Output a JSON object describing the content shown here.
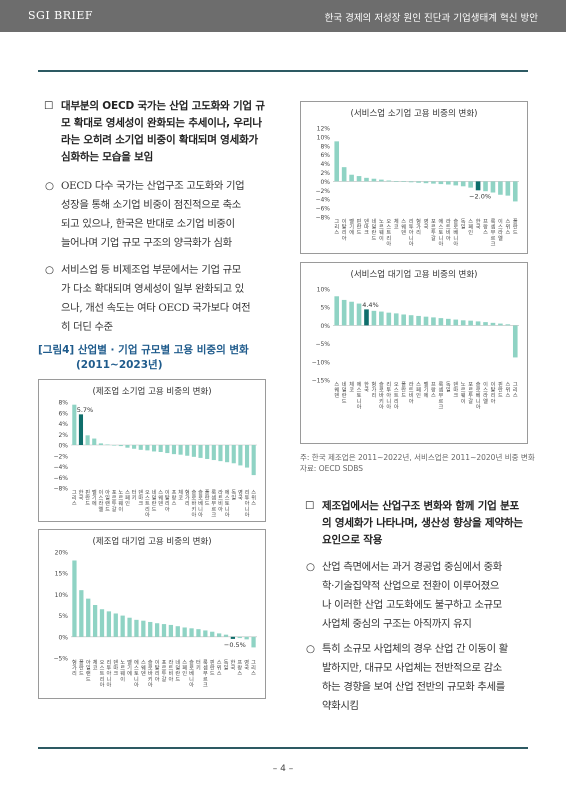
{
  "header": {
    "left": "SGI BRIEF",
    "right": "한국 경제의 저성장 원인 진단과 기업생태계 혁신 방안"
  },
  "page_number": "– 4 –",
  "left_text": {
    "head1": {
      "mark": "☐",
      "lines": [
        "대부분의 OECD 국가는 산업 고도화와 기업 규",
        "모 확대로 영세성이 완화되는 추세이나, 우리나",
        "라는 오히려 소기업 비중이 확대되며 영세화가",
        "심화하는 모습을 보임"
      ]
    },
    "bullets": [
      {
        "mark": "○",
        "lines": [
          "OECD 다수 국가는 산업구조 고도화와 기업",
          "성장을 통해 소기업 비중이 점진적으로 축소",
          "되고 있으나, 한국은 반대로 소기업 비중이",
          "늘어나며 기업 규모 구조의 양극화가 심화"
        ]
      },
      {
        "mark": "○",
        "lines": [
          "서비스업 등 비제조업 부문에서는 기업 규모",
          "가 다소 확대되며 영세성이 일부 완화되고 있",
          "으나, 개선 속도는 여타 OECD 국가보다 여전",
          "히 더딘 수준"
        ]
      }
    ]
  },
  "figure_title": {
    "line1": "[그림4] 산업별 · 기업 규모별 고용 비중의 변화",
    "line2": "(2011~2023년)"
  },
  "right_text": {
    "head": {
      "mark": "☐",
      "lines": [
        "제조업에서는 산업구조 변화와 함께 기업 분포",
        "의 영세화가 나타나며, 생산성 향상을 제약하는",
        "요인으로 작용"
      ]
    },
    "bullets": [
      {
        "mark": "○",
        "lines": [
          "산업 측면에서는 과거 경공업 중심에서 중화",
          "학·기술집약적 산업으로 전환이 이루어졌으",
          "나 이러한 산업 고도화에도 불구하고 소규모",
          "사업체 중심의 구조는 아직까지 유지"
        ]
      },
      {
        "mark": "○",
        "lines": [
          "특히 소규모 사업체의 경우 산업 간 이동이 활",
          "발하지만, 대규모 사업체는 전반적으로 감소",
          "하는 경향을 보여 산업 전반의 규모화 추세를",
          "약화시킴"
        ]
      }
    ]
  },
  "note": {
    "line1": "주: 한국 제조업은 2011~2022년, 서비스업은 2011~2020년 비중 변화",
    "line2": "자료: OECD SDBS"
  },
  "colors": {
    "bar": "#8fd3c4",
    "highlight": "#0f6e6b",
    "title_blue": "#1f5b8c"
  },
  "chart_data": [
    {
      "type": "bar",
      "title": "(제조업 소기업 고용 비중의 변화)",
      "categories": [
        "그리스",
        "한국",
        "핀란드",
        "벨기에",
        "이스라엘",
        "아일랜드",
        "포르투갈",
        "노르웨이",
        "스페인",
        "터키",
        "덴마크",
        "오스트리아",
        "네덜란드",
        "스웨덴",
        "이탈리아",
        "프랑스",
        "체코",
        "헝가리",
        "슬로바키아",
        "슬로베니아",
        "폴란드",
        "룩셈부르크",
        "라트비아",
        "에스토니아",
        "독일",
        "영국",
        "리투아니아",
        "스위스"
      ],
      "values": [
        7.5,
        5.7,
        1.8,
        1.2,
        0.3,
        0.1,
        0.0,
        -0.2,
        -0.5,
        -0.7,
        -0.9,
        -1.0,
        -1.2,
        -1.3,
        -1.5,
        -1.7,
        -1.8,
        -2.0,
        -2.2,
        -2.4,
        -2.6,
        -2.8,
        -3.0,
        -3.2,
        -3.4,
        -3.8,
        -4.2,
        -5.6
      ],
      "highlight_index": 1,
      "data_labels": [
        {
          "index": 1,
          "text": "5.7%"
        }
      ],
      "ylim": [
        -8,
        8
      ],
      "yticks": [
        "8%",
        "6%",
        "4%",
        "2%",
        "0%",
        "−2%",
        "−4%",
        "−6%",
        "−8%"
      ]
    },
    {
      "type": "bar",
      "title": "(제조업 대기업 고용 비중의 변화)",
      "categories": [
        "헝가리",
        "폴란드",
        "아일랜드",
        "체코",
        "오스트리아",
        "리투아니아",
        "덴마크",
        "노르웨이",
        "벨기에",
        "에스토니아",
        "스웨덴",
        "슬로바키아",
        "이탈리아",
        "포르투갈",
        "라트비아",
        "네덜란드",
        "스페인",
        "슬로베니아",
        "터키",
        "룩셈부르크",
        "핀란드",
        "스위스",
        "독일",
        "한국",
        "프랑스",
        "영국",
        "그리스"
      ],
      "values": [
        18.0,
        11.0,
        9.0,
        7.5,
        6.5,
        6.0,
        5.5,
        5.0,
        4.5,
        4.0,
        3.8,
        3.5,
        3.2,
        3.0,
        2.8,
        2.5,
        2.2,
        2.0,
        1.8,
        1.5,
        1.2,
        0.8,
        0.5,
        -0.5,
        -0.3,
        -0.6,
        -2.5
      ],
      "highlight_index": 23,
      "data_labels": [
        {
          "index": 23,
          "text": "−0.5%"
        }
      ],
      "ylim": [
        -5,
        20
      ],
      "yticks": [
        "20%",
        "15%",
        "10%",
        "5%",
        "0%",
        "−5%"
      ]
    },
    {
      "type": "bar",
      "title": "(서비스업 소기업 고용 비중의 변화)",
      "categories": [
        "그리스",
        "이탈리아",
        "벨기에",
        "핀란드",
        "덴마크",
        "네덜란드",
        "노르웨이",
        "오스트리아",
        "체코",
        "스웨덴",
        "리투아니아",
        "헝가리",
        "영국",
        "포르투갈",
        "에스토니아",
        "라트비아",
        "슬로베니아",
        "독일",
        "스페인",
        "한국",
        "프랑스",
        "룩셈부르크",
        "이스라엘",
        "스위스",
        "폴란드"
      ],
      "values": [
        9.0,
        3.2,
        1.5,
        1.2,
        0.8,
        0.6,
        0.4,
        0.2,
        0.0,
        -0.1,
        -0.2,
        -0.3,
        -0.4,
        -0.5,
        -0.6,
        -0.7,
        -0.9,
        -1.1,
        -1.4,
        -2.0,
        -2.2,
        -2.5,
        -3.0,
        -3.2,
        -4.5
      ],
      "highlight_index": 19,
      "data_labels": [
        {
          "index": 19,
          "text": "−2.0%"
        }
      ],
      "ylim": [
        -8,
        12
      ],
      "yticks": [
        "12%",
        "10%",
        "8%",
        "6%",
        "4%",
        "2%",
        "0%",
        "−2%",
        "−4%",
        "−6%",
        "−8%"
      ]
    },
    {
      "type": "bar",
      "title": "(서비스업 대기업 고용 비중의 변화)",
      "categories": [
        "스웨덴",
        "네덜란드",
        "체코",
        "에스토니아",
        "한국",
        "헝가리",
        "슬로바키아",
        "리투아니아",
        "오스트리아",
        "폴란드",
        "라트비아",
        "스페인",
        "벨기에",
        "프랑스",
        "룩셈부르크",
        "독일",
        "덴마크",
        "노르웨이",
        "포르투갈",
        "슬로베니아",
        "이스라엘",
        "이탈리아",
        "핀란드",
        "스위스",
        "그리스"
      ],
      "values": [
        8.0,
        7.0,
        6.5,
        6.0,
        4.4,
        4.0,
        3.8,
        3.5,
        3.3,
        3.0,
        2.8,
        2.6,
        2.4,
        2.2,
        2.0,
        1.8,
        1.6,
        1.4,
        1.3,
        1.1,
        0.9,
        0.7,
        0.5,
        0.3,
        -8.8
      ],
      "highlight_index": 4,
      "data_labels": [
        {
          "index": 4,
          "text": "4.4%"
        }
      ],
      "ylim": [
        -15,
        10
      ],
      "yticks": [
        "10%",
        "5%",
        "0%",
        "−5%",
        "−10%",
        "−15%"
      ]
    }
  ]
}
